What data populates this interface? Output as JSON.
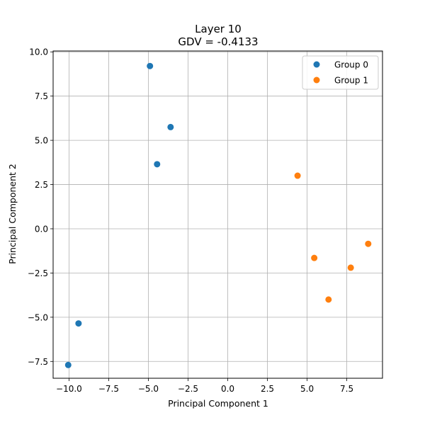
{
  "chart_data": {
    "type": "scatter",
    "title": "Layer 10",
    "subtitle": "GDV = -0.4133",
    "xlabel": "Principal Component 1",
    "ylabel": "Principal Component 2",
    "xlim": [
      -11.0,
      9.75
    ],
    "ylim": [
      -8.45,
      10.05
    ],
    "xticks": [
      -10.0,
      -7.5,
      -5.0,
      -2.5,
      0.0,
      2.5,
      5.0,
      7.5
    ],
    "xtick_labels": [
      "−10.0",
      "−7.5",
      "−5.0",
      "−2.5",
      "0.0",
      "2.5",
      "5.0",
      "7.5"
    ],
    "yticks": [
      -7.5,
      -5.0,
      -2.5,
      0.0,
      2.5,
      5.0,
      7.5,
      10.0
    ],
    "ytick_labels": [
      "−7.5",
      "−5.0",
      "−2.5",
      "0.0",
      "2.5",
      "5.0",
      "7.5",
      "10.0"
    ],
    "grid": true,
    "legend_position": "top-right",
    "series": [
      {
        "name": "Group 0",
        "color": "#1f77b4",
        "points": [
          {
            "x": -4.9,
            "y": 9.2
          },
          {
            "x": -3.6,
            "y": 5.75
          },
          {
            "x": -4.45,
            "y": 3.65
          },
          {
            "x": -9.4,
            "y": -5.35
          },
          {
            "x": -10.05,
            "y": -7.7
          }
        ]
      },
      {
        "name": "Group 1",
        "color": "#ff7f0e",
        "points": [
          {
            "x": 4.4,
            "y": 3.0
          },
          {
            "x": 5.45,
            "y": -1.65
          },
          {
            "x": 8.85,
            "y": -0.85
          },
          {
            "x": 7.75,
            "y": -2.2
          },
          {
            "x": 6.35,
            "y": -4.0
          }
        ]
      }
    ]
  }
}
